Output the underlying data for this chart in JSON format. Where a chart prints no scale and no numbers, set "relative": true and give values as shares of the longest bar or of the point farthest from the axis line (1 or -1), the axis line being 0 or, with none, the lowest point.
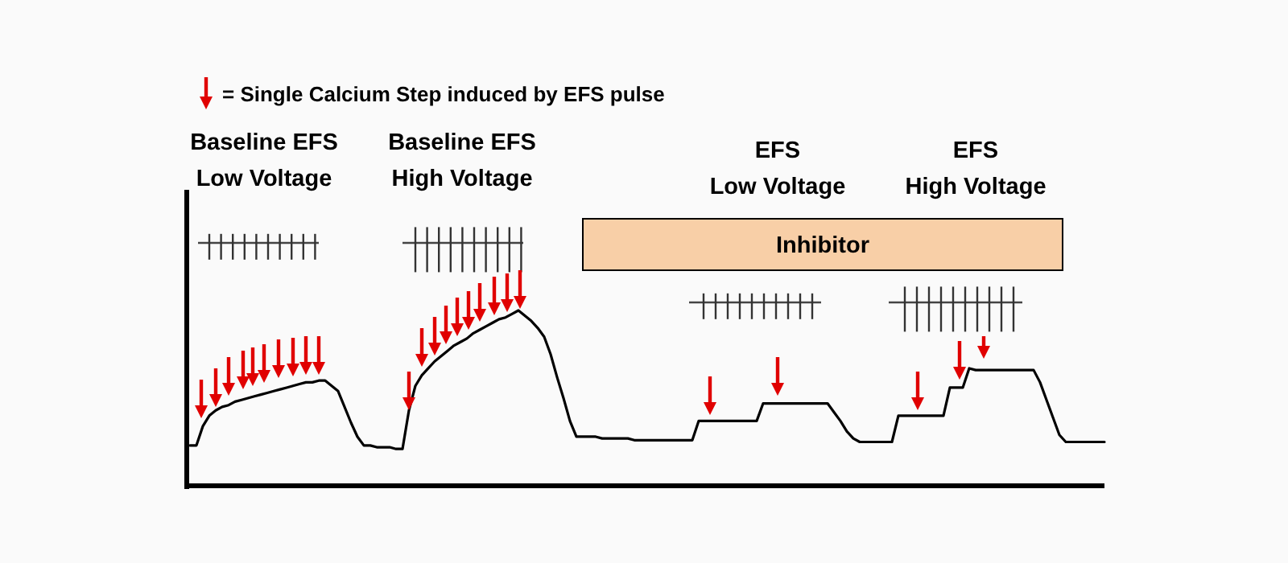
{
  "chart_data": {
    "type": "line",
    "relative": true,
    "color": "#000000",
    "categories": [
      null,
      null,
      null,
      null,
      null,
      null,
      null,
      null,
      null,
      null,
      null,
      null,
      null,
      null,
      null,
      null,
      null,
      null,
      null,
      null,
      null,
      null,
      null,
      null,
      null,
      null,
      null,
      null,
      null,
      null,
      null,
      null,
      null,
      null,
      null,
      null,
      null,
      null,
      null,
      null,
      null,
      null,
      null,
      null,
      null,
      null,
      null,
      null,
      null,
      null,
      null,
      null,
      null,
      null,
      null,
      null,
      null,
      null,
      null,
      null,
      null,
      null,
      null,
      null,
      null,
      null,
      null,
      null,
      null,
      null,
      null,
      null,
      null,
      null,
      null,
      null,
      null,
      null,
      null,
      null,
      null,
      null,
      null,
      null,
      null,
      null,
      null,
      null,
      null,
      null,
      null,
      null,
      null,
      null,
      null,
      null,
      null,
      null,
      null,
      null,
      null,
      null,
      null,
      null,
      null,
      null,
      null,
      null,
      null,
      null,
      null,
      null,
      null,
      null,
      null,
      null,
      null,
      null,
      null,
      null,
      null,
      null,
      null,
      null,
      null,
      null,
      null,
      null,
      null,
      null,
      null,
      null,
      null,
      null,
      null,
      null,
      null,
      null,
      null,
      null,
      null,
      null,
      null
    ],
    "values": [
      0.23,
      0.23,
      0.34,
      0.4,
      0.43,
      0.45,
      0.46,
      0.48,
      0.49,
      0.5,
      0.51,
      0.52,
      0.53,
      0.54,
      0.55,
      0.56,
      0.57,
      0.58,
      0.59,
      0.59,
      0.6,
      0.6,
      0.57,
      0.54,
      0.45,
      0.36,
      0.28,
      0.23,
      0.23,
      0.22,
      0.22,
      0.22,
      0.21,
      0.21,
      0.43,
      0.57,
      0.63,
      0.67,
      0.71,
      0.74,
      0.77,
      0.8,
      0.82,
      0.84,
      0.87,
      0.89,
      0.91,
      0.93,
      0.95,
      0.96,
      0.98,
      1,
      0.97,
      0.94,
      0.9,
      0.85,
      0.75,
      0.62,
      0.5,
      0.37,
      0.28,
      0.28,
      0.28,
      0.28,
      0.27,
      0.27,
      0.27,
      0.27,
      0.27,
      0.26,
      0.26,
      0.26,
      0.26,
      0.26,
      0.26,
      0.26,
      0.26,
      0.26,
      0.26,
      0.37,
      0.37,
      0.37,
      0.37,
      0.37,
      0.37,
      0.37,
      0.37,
      0.37,
      0.37,
      0.47,
      0.47,
      0.47,
      0.47,
      0.47,
      0.47,
      0.47,
      0.47,
      0.47,
      0.47,
      0.47,
      0.42,
      0.37,
      0.31,
      0.27,
      0.25,
      0.25,
      0.25,
      0.25,
      0.25,
      0.25,
      0.4,
      0.4,
      0.4,
      0.4,
      0.4,
      0.4,
      0.4,
      0.4,
      0.56,
      0.56,
      0.56,
      0.67,
      0.66,
      0.66,
      0.66,
      0.66,
      0.66,
      0.66,
      0.66,
      0.66,
      0.66,
      0.66,
      0.59,
      0.49,
      0.39,
      0.29,
      0.25,
      0.25,
      0.25,
      0.25,
      0.25,
      0.25,
      0.25
    ],
    "annotations": [
      "= Single Calcium Step induced by EFS pulse",
      "Baseline EFS\nLow Voltage",
      "Baseline EFS\nHigh Voltage",
      "EFS\nLow Voltage",
      "EFS\nHigh Voltage",
      "Inhibitor"
    ]
  }
}
